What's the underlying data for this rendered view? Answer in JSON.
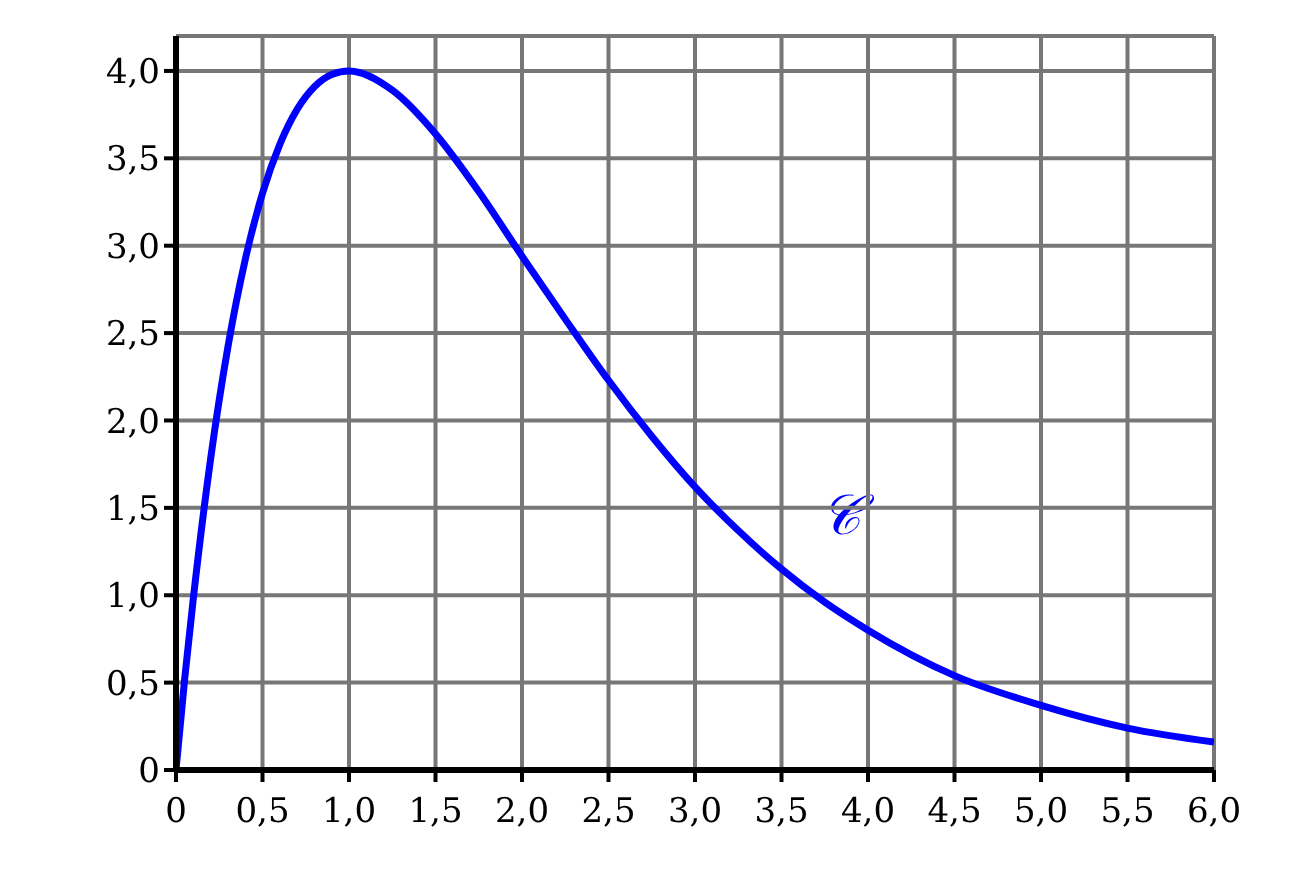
{
  "chart_data": {
    "type": "line",
    "x": [
      0,
      0.05,
      0.1,
      0.2,
      0.3,
      0.4,
      0.5,
      0.6,
      0.7,
      0.8,
      0.9,
      1,
      1.25,
      1.5,
      1.75,
      2,
      2.25,
      2.5,
      2.75,
      3,
      3.25,
      3.5,
      3.75,
      4,
      4.5,
      5,
      5.5,
      6
    ],
    "series": [
      {
        "color": "#0000ff",
        "values": [
          0,
          0.52,
          0.98,
          1.78,
          2.42,
          2.92,
          3.3,
          3.58,
          3.78,
          3.91,
          3.98,
          4,
          3.89,
          3.64,
          3.31,
          2.94,
          2.58,
          2.23,
          1.91,
          1.62,
          1.37,
          1.15,
          0.96,
          0.8,
          0.54,
          0.37,
          0.24,
          0.16
        ]
      }
    ],
    "xlim": [
      0,
      6
    ],
    "ylim": [
      0,
      4.2
    ],
    "xticks": [
      0,
      {
        "value": 0.5,
        "label": "0,5"
      },
      {
        "value": 1,
        "label": "1,0"
      },
      {
        "value": 1.5,
        "label": "1,5"
      },
      {
        "value": 2,
        "label": "2,0"
      },
      {
        "value": 2.5,
        "label": "2,5"
      },
      {
        "value": 3,
        "label": "3,0"
      },
      {
        "value": 3.5,
        "label": "3,5"
      },
      {
        "value": 4,
        "label": "4,0"
      },
      {
        "value": 4.5,
        "label": "4,5"
      },
      {
        "value": 5,
        "label": "5,0"
      },
      {
        "value": 5.5,
        "label": "5,5"
      },
      {
        "value": 6,
        "label": "6,0"
      }
    ],
    "yticks": [
      0,
      {
        "value": 0.5,
        "label": "0,5"
      },
      {
        "value": 1,
        "label": "1,0"
      },
      {
        "value": 1.5,
        "label": "1,5"
      },
      {
        "value": 2,
        "label": "2,0"
      },
      {
        "value": 2.5,
        "label": "2,5"
      },
      {
        "value": 3,
        "label": "3,0"
      },
      {
        "value": 3.5,
        "label": "3,5"
      },
      {
        "value": 4,
        "label": "4,0"
      }
    ],
    "annotations": [
      "𝒞"
    ],
    "grid": true,
    "marker": "none",
    "line_style": "solid",
    "legend": false
  }
}
